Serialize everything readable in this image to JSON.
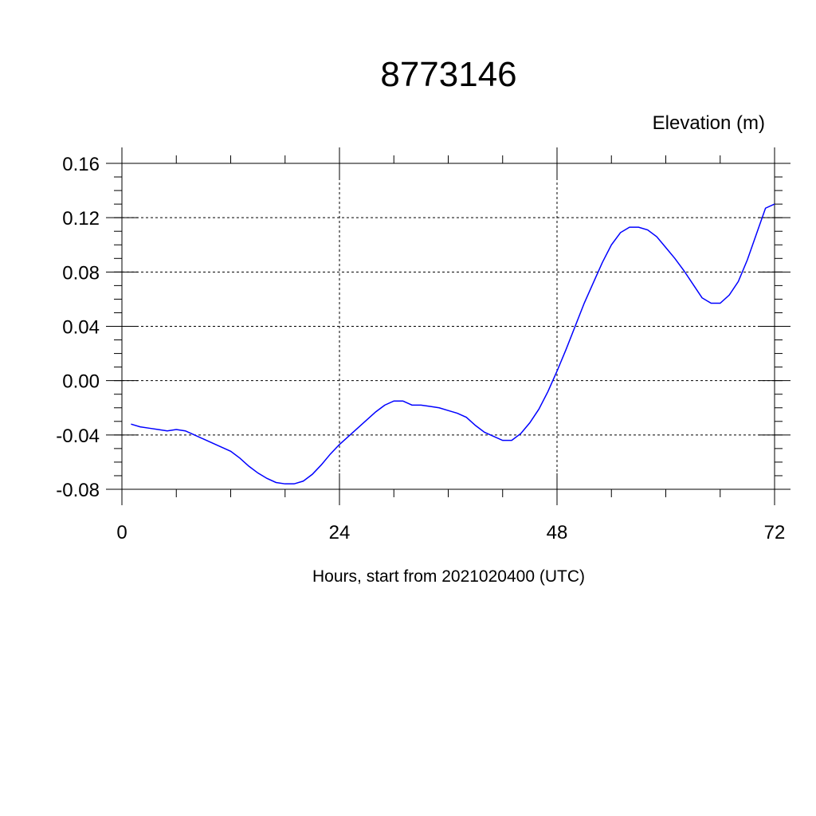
{
  "chart_data": {
    "type": "line",
    "title": "8773146",
    "ylabel": "Elevation (m)",
    "xlabel": "Hours, start from 2021020400 (UTC)",
    "xlim": [
      0,
      72
    ],
    "ylim": [
      -0.08,
      0.16
    ],
    "x_ticks": [
      0,
      24,
      48,
      72
    ],
    "x_tick_labels": [
      "0",
      "24",
      "48",
      "72"
    ],
    "y_ticks": [
      -0.08,
      -0.04,
      0.0,
      0.04,
      0.08,
      0.12,
      0.16
    ],
    "y_tick_labels": [
      "-0.08",
      "-0.04",
      "0.00",
      "0.04",
      "0.08",
      "0.12",
      "0.16"
    ],
    "grid": true,
    "series": [
      {
        "color": "#0000ff",
        "x": [
          1,
          2,
          3,
          4,
          5,
          6,
          7,
          8,
          9,
          10,
          11,
          12,
          13,
          14,
          15,
          16,
          17,
          18,
          19,
          20,
          21,
          22,
          23,
          24,
          25,
          26,
          27,
          28,
          29,
          30,
          31,
          32,
          33,
          34,
          35,
          36,
          37,
          38,
          39,
          40,
          41,
          42,
          43,
          44,
          45,
          46,
          47,
          48,
          49,
          50,
          51,
          52,
          53,
          54,
          55,
          56,
          57,
          58,
          59,
          60,
          61,
          62,
          63,
          64,
          65,
          66,
          67,
          68,
          69,
          70,
          71,
          72
        ],
        "values": [
          -0.032,
          -0.034,
          -0.035,
          -0.036,
          -0.037,
          -0.036,
          -0.037,
          -0.04,
          -0.043,
          -0.046,
          -0.049,
          -0.052,
          -0.057,
          -0.063,
          -0.068,
          -0.072,
          -0.075,
          -0.076,
          -0.076,
          -0.074,
          -0.069,
          -0.062,
          -0.054,
          -0.047,
          -0.041,
          -0.035,
          -0.029,
          -0.023,
          -0.018,
          -0.015,
          -0.015,
          -0.018,
          -0.018,
          -0.019,
          -0.02,
          -0.022,
          -0.024,
          -0.027,
          -0.033,
          -0.038,
          -0.041,
          -0.044,
          -0.044,
          -0.039,
          -0.031,
          -0.021,
          -0.008,
          0.007,
          0.023,
          0.04,
          0.057,
          0.072,
          0.087,
          0.1,
          0.109,
          0.113,
          0.113,
          0.111,
          0.106,
          0.098,
          0.09,
          0.081,
          0.071,
          0.061,
          0.057,
          0.057,
          0.063,
          0.073,
          0.089,
          0.108,
          0.127,
          0.13
        ]
      }
    ]
  }
}
